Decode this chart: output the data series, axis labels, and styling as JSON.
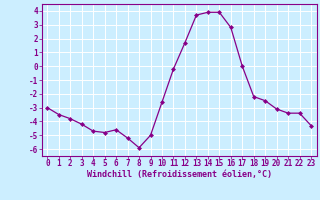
{
  "x": [
    0,
    1,
    2,
    3,
    4,
    5,
    6,
    7,
    8,
    9,
    10,
    11,
    12,
    13,
    14,
    15,
    16,
    17,
    18,
    19,
    20,
    21,
    22,
    23
  ],
  "y": [
    -3.0,
    -3.5,
    -3.8,
    -4.2,
    -4.7,
    -4.8,
    -4.6,
    -5.2,
    -5.9,
    -5.0,
    -2.6,
    -0.2,
    1.7,
    3.7,
    3.9,
    3.9,
    2.8,
    0.0,
    -2.2,
    -2.5,
    -3.1,
    -3.4,
    -3.4,
    -4.3
  ],
  "line_color": "#880088",
  "marker": "D",
  "marker_size": 2,
  "bg_color": "#cceeff",
  "grid_color": "#ffffff",
  "xlabel": "Windchill (Refroidissement éolien,°C)",
  "xlabel_color": "#880088",
  "ylabel_ticks": [
    -6,
    -5,
    -4,
    -3,
    -2,
    -1,
    0,
    1,
    2,
    3,
    4
  ],
  "xlim": [
    -0.5,
    23.5
  ],
  "ylim": [
    -6.5,
    4.5
  ],
  "tick_color": "#880088",
  "spine_color": "#880088",
  "tick_fontsize": 5.5,
  "label_fontsize": 6.0
}
